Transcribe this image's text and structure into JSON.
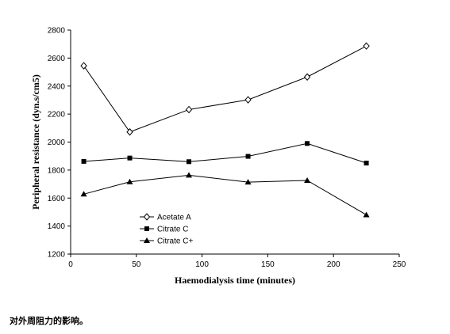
{
  "chart_data": {
    "type": "line",
    "x": [
      10,
      45,
      90,
      135,
      180,
      225
    ],
    "series": [
      {
        "name": "Acetate A",
        "marker": "diamond-open",
        "values": [
          2545,
          2072,
          2232,
          2302,
          2465,
          2686
        ]
      },
      {
        "name": "Citrate C",
        "marker": "square-filled",
        "values": [
          1862,
          1886,
          1860,
          1898,
          1990,
          1850
        ]
      },
      {
        "name": "Citrate C+",
        "marker": "triangle-filled",
        "values": [
          1628,
          1716,
          1763,
          1714,
          1726,
          1480
        ]
      }
    ],
    "xlabel": "Haemodialysis time (minutes)",
    "ylabel": "Peripheral resistance (dyn.s/cm5)",
    "xlim": [
      0,
      250
    ],
    "ylim": [
      1200,
      2800
    ],
    "xticks": [
      0,
      50,
      100,
      150,
      200,
      250
    ],
    "yticks": [
      1200,
      1400,
      1600,
      1800,
      2000,
      2200,
      2400,
      2600,
      2800
    ],
    "grid": false,
    "legend_position": "bottom-left-inside",
    "line_color": "#000000"
  },
  "caption": "对外周阻力的影响。"
}
